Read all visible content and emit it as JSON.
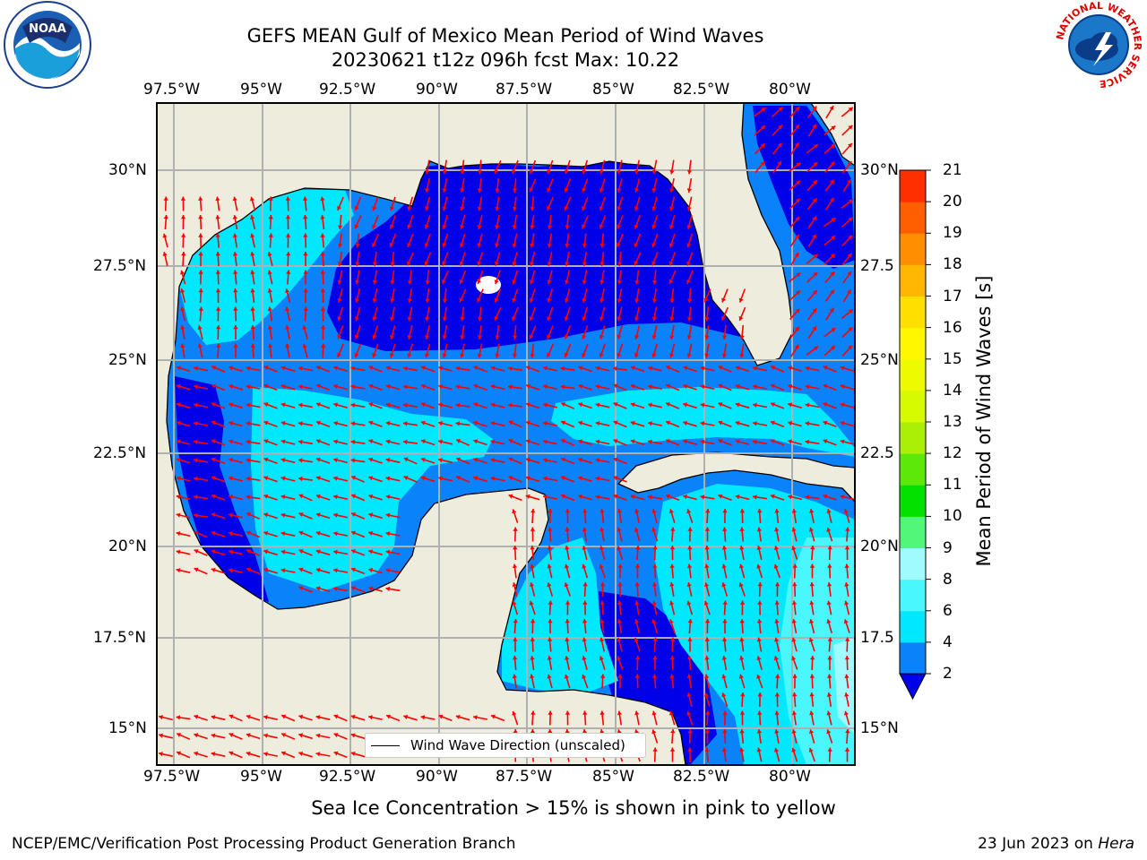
{
  "title": {
    "line1": "GEFS MEAN Gulf of Mexico Mean Period of Wind Waves",
    "line2": "20230621 t12z 096h fcst   Max: 10.22"
  },
  "map": {
    "lon_labels": [
      "97.5°W",
      "95°W",
      "92.5°W",
      "90°W",
      "87.5°W",
      "85°W",
      "82.5°W",
      "80°W"
    ],
    "lat_labels": [
      "30°N",
      "27.5°N",
      "25°N",
      "22.5°N",
      "20°N",
      "17.5°N",
      "15°N"
    ],
    "lat_labels_right": [
      "30°N",
      "27.5",
      "25°N",
      "22.5",
      "20°N",
      "17.5",
      "15°N"
    ],
    "land_color": "#eeecdd",
    "legend_label": "Wind Wave Direction (unscaled)"
  },
  "colorbar": {
    "label": "Mean Period of Wind Waves [s]",
    "ticks": [
      "2",
      "4",
      "6",
      "8",
      "9",
      "10",
      "11",
      "12",
      "13",
      "14",
      "15",
      "16",
      "17",
      "18",
      "19",
      "20",
      "21"
    ],
    "colors": [
      "#0a82fa",
      "#00e8ff",
      "#4af7ff",
      "#9ffbff",
      "#52f77a",
      "#00e300",
      "#5ee80a",
      "#aaef05",
      "#d6fa00",
      "#eefb00",
      "#fff700",
      "#ffdf00",
      "#ffb700",
      "#ff8f00",
      "#ff5f00",
      "#ff2f00"
    ],
    "extend_color": "#0000e8"
  },
  "note": "Sea Ice Concentration > 15% is shown in pink to yellow",
  "footer": {
    "left": "NCEP/EMC/Verification Post Processing Product Generation Branch",
    "date": "23 Jun 2023 on",
    "host": "Hera"
  },
  "logos": {
    "noaa": "NOAA",
    "nws_ring": "NATIONAL WEATHER SERVICE"
  }
}
